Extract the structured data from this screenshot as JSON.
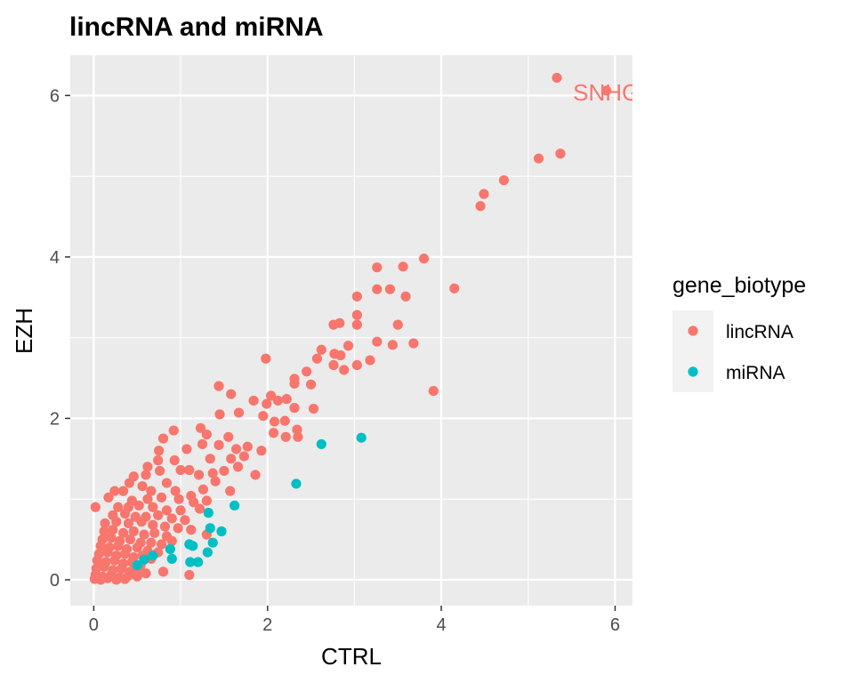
{
  "chart_data": {
    "type": "scatter",
    "title": "lincRNA and miRNA",
    "xlabel": "CTRL",
    "ylabel": "EZH",
    "xlim": [
      -0.27,
      6.2
    ],
    "ylim": [
      -0.32,
      6.5
    ],
    "x_ticks": [
      0,
      2,
      4,
      6
    ],
    "y_ticks": [
      0,
      2,
      4,
      6
    ],
    "x_tick_labels": [
      "0",
      "2",
      "4",
      "6"
    ],
    "y_tick_labels": [
      "0",
      "2",
      "4",
      "6"
    ],
    "grid": true,
    "legend": {
      "title": "gene_biotype",
      "placement": "right",
      "entries": [
        "lincRNA",
        "miRNA"
      ]
    },
    "colors": {
      "lincRNA": "#F8766D",
      "miRNA": "#00BFC4",
      "panel": "#EBEBEB",
      "grid": "#FFFFFF"
    },
    "annotations": [
      {
        "text": "SNHG",
        "x": 5.9,
        "y": 6.05,
        "series": "lincRNA"
      }
    ],
    "series": [
      {
        "name": "lincRNA",
        "points": [
          [
            5.33,
            6.22
          ],
          [
            5.9,
            6.06
          ],
          [
            5.37,
            5.28
          ],
          [
            5.12,
            5.22
          ],
          [
            4.72,
            4.95
          ],
          [
            4.49,
            4.78
          ],
          [
            4.45,
            4.63
          ],
          [
            3.8,
            3.98
          ],
          [
            3.56,
            3.88
          ],
          [
            3.26,
            3.87
          ],
          [
            4.15,
            3.61
          ],
          [
            3.26,
            3.6
          ],
          [
            3.41,
            3.6
          ],
          [
            3.59,
            3.51
          ],
          [
            3.03,
            3.51
          ],
          [
            3.03,
            3.28
          ],
          [
            2.83,
            3.18
          ],
          [
            2.76,
            3.16
          ],
          [
            3.03,
            3.16
          ],
          [
            3.5,
            3.16
          ],
          [
            3.26,
            2.95
          ],
          [
            3.44,
            2.91
          ],
          [
            3.68,
            2.93
          ],
          [
            2.93,
            2.9
          ],
          [
            2.77,
            2.8
          ],
          [
            2.84,
            2.78
          ],
          [
            2.57,
            2.74
          ],
          [
            2.62,
            2.85
          ],
          [
            3.18,
            2.72
          ],
          [
            3.03,
            2.66
          ],
          [
            2.76,
            2.66
          ],
          [
            2.88,
            2.6
          ],
          [
            1.98,
            2.74
          ],
          [
            3.91,
            2.34
          ],
          [
            2.31,
            2.49
          ],
          [
            2.45,
            2.58
          ],
          [
            2.31,
            2.43
          ],
          [
            2.04,
            2.28
          ],
          [
            2.5,
            2.42
          ],
          [
            1.99,
            2.18
          ],
          [
            1.44,
            2.4
          ],
          [
            2.22,
            2.24
          ],
          [
            2.31,
            2.13
          ],
          [
            2.53,
            2.12
          ],
          [
            1.58,
            2.3
          ],
          [
            1.84,
            2.22
          ],
          [
            2.12,
            2.22
          ],
          [
            2.2,
            1.97
          ],
          [
            1.45,
            2.05
          ],
          [
            1.67,
            2.07
          ],
          [
            1.95,
            2.03
          ],
          [
            2.08,
            1.96
          ],
          [
            2.07,
            1.82
          ],
          [
            2.21,
            1.77
          ],
          [
            1.77,
            1.65
          ],
          [
            2.34,
            1.86
          ],
          [
            2.35,
            1.77
          ],
          [
            1.3,
            1.8
          ],
          [
            1.23,
            1.88
          ],
          [
            0.92,
            1.85
          ],
          [
            0.8,
            1.75
          ],
          [
            0.75,
            1.6
          ],
          [
            1.07,
            1.62
          ],
          [
            1.25,
            1.68
          ],
          [
            1.44,
            1.67
          ],
          [
            1.55,
            1.77
          ],
          [
            1.64,
            1.62
          ],
          [
            1.73,
            1.53
          ],
          [
            1.93,
            1.6
          ],
          [
            1.86,
            1.3
          ],
          [
            0.74,
            1.48
          ],
          [
            0.93,
            1.48
          ],
          [
            1.34,
            1.5
          ],
          [
            1.58,
            1.5
          ],
          [
            0.62,
            1.4
          ],
          [
            0.76,
            1.35
          ],
          [
            1.0,
            1.36
          ],
          [
            1.1,
            1.36
          ],
          [
            1.5,
            1.35
          ],
          [
            1.66,
            1.4
          ],
          [
            0.46,
            1.28
          ],
          [
            0.6,
            1.3
          ],
          [
            0.84,
            1.2
          ],
          [
            1.21,
            1.3
          ],
          [
            1.37,
            1.32
          ],
          [
            1.57,
            1.1
          ],
          [
            0.41,
            1.2
          ],
          [
            0.56,
            1.16
          ],
          [
            0.66,
            1.1
          ],
          [
            0.94,
            1.1
          ],
          [
            1.12,
            1.04
          ],
          [
            1.26,
            1.12
          ],
          [
            1.4,
            1.22
          ],
          [
            0.24,
            1.1
          ],
          [
            0.34,
            1.1
          ],
          [
            0.17,
            1.02
          ],
          [
            0.44,
            0.98
          ],
          [
            0.62,
            1.0
          ],
          [
            0.78,
            1.02
          ],
          [
            0.98,
            1.0
          ],
          [
            1.15,
            0.96
          ],
          [
            1.3,
            0.98
          ],
          [
            0.02,
            0.9
          ],
          [
            0.28,
            0.9
          ],
          [
            0.4,
            0.9
          ],
          [
            0.52,
            0.92
          ],
          [
            0.68,
            0.9
          ],
          [
            0.84,
            0.86
          ],
          [
            1.0,
            0.86
          ],
          [
            1.22,
            0.88
          ],
          [
            0.22,
            0.8
          ],
          [
            0.36,
            0.82
          ],
          [
            0.48,
            0.78
          ],
          [
            0.6,
            0.78
          ],
          [
            0.74,
            0.8
          ],
          [
            0.9,
            0.76
          ],
          [
            1.05,
            0.74
          ],
          [
            0.13,
            0.7
          ],
          [
            0.26,
            0.72
          ],
          [
            0.4,
            0.7
          ],
          [
            0.55,
            0.72
          ],
          [
            0.68,
            0.68
          ],
          [
            0.82,
            0.66
          ],
          [
            0.97,
            0.64
          ],
          [
            1.12,
            0.62
          ],
          [
            0.12,
            0.6
          ],
          [
            0.22,
            0.62
          ],
          [
            0.34,
            0.58
          ],
          [
            0.46,
            0.6
          ],
          [
            0.58,
            0.56
          ],
          [
            0.7,
            0.58
          ],
          [
            0.84,
            0.54
          ],
          [
            1.3,
            0.56
          ],
          [
            0.1,
            0.5
          ],
          [
            0.2,
            0.52
          ],
          [
            0.3,
            0.48
          ],
          [
            0.42,
            0.5
          ],
          [
            0.54,
            0.46
          ],
          [
            0.66,
            0.46
          ],
          [
            0.78,
            0.44
          ],
          [
            0.9,
            0.48
          ],
          [
            0.08,
            0.42
          ],
          [
            0.18,
            0.4
          ],
          [
            0.28,
            0.42
          ],
          [
            0.38,
            0.38
          ],
          [
            0.5,
            0.4
          ],
          [
            0.62,
            0.36
          ],
          [
            0.74,
            0.34
          ],
          [
            0.06,
            0.32
          ],
          [
            0.16,
            0.34
          ],
          [
            0.26,
            0.3
          ],
          [
            0.36,
            0.32
          ],
          [
            0.46,
            0.28
          ],
          [
            0.56,
            0.3
          ],
          [
            0.66,
            0.26
          ],
          [
            0.04,
            0.24
          ],
          [
            0.14,
            0.22
          ],
          [
            0.24,
            0.24
          ],
          [
            0.34,
            0.2
          ],
          [
            0.44,
            0.22
          ],
          [
            0.54,
            0.18
          ],
          [
            0.03,
            0.14
          ],
          [
            0.12,
            0.16
          ],
          [
            0.22,
            0.12
          ],
          [
            0.32,
            0.14
          ],
          [
            0.42,
            0.1
          ],
          [
            0.52,
            0.12
          ],
          [
            0.6,
            0.08
          ],
          [
            0.02,
            0.06
          ],
          [
            0.1,
            0.04
          ],
          [
            0.2,
            0.06
          ],
          [
            0.3,
            0.03
          ],
          [
            0.4,
            0.05
          ],
          [
            0.5,
            0.04
          ],
          [
            0.01,
            0.01
          ],
          [
            0.08,
            0.0
          ],
          [
            0.16,
            0.02
          ],
          [
            0.26,
            0.0
          ],
          [
            0.36,
            0.01
          ],
          [
            1.1,
            0.06
          ],
          [
            0.8,
            0.1
          ]
        ]
      },
      {
        "name": "miRNA",
        "points": [
          [
            3.08,
            1.76
          ],
          [
            2.62,
            1.68
          ],
          [
            2.33,
            1.19
          ],
          [
            1.62,
            0.92
          ],
          [
            1.32,
            0.83
          ],
          [
            1.34,
            0.64
          ],
          [
            1.47,
            0.6
          ],
          [
            1.37,
            0.46
          ],
          [
            1.1,
            0.44
          ],
          [
            1.14,
            0.42
          ],
          [
            0.88,
            0.38
          ],
          [
            0.68,
            0.3
          ],
          [
            0.58,
            0.25
          ],
          [
            1.31,
            0.34
          ],
          [
            1.2,
            0.22
          ],
          [
            1.11,
            0.22
          ],
          [
            0.9,
            0.26
          ],
          [
            0.5,
            0.18
          ]
        ]
      }
    ]
  }
}
